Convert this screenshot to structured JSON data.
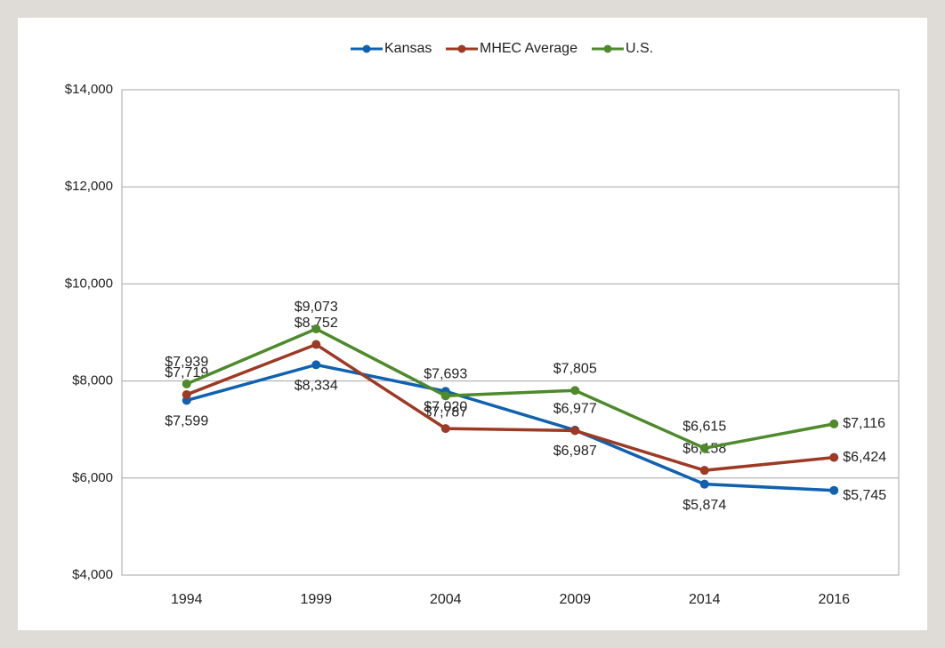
{
  "chart_data": {
    "type": "line",
    "categories": [
      "1994",
      "1999",
      "2004",
      "2009",
      "2014",
      "2016"
    ],
    "series": [
      {
        "name": "Kansas",
        "color": "#1061b0",
        "values": [
          7599,
          8334,
          7787,
          6987,
          5874,
          5745
        ],
        "value_labels": [
          "$7,599",
          "$8,334",
          "$7,787",
          "$6,987",
          "$5,874",
          "$5,745"
        ]
      },
      {
        "name": "MHEC Average",
        "color": "#9c3a24",
        "values": [
          7719,
          8752,
          7020,
          6977,
          6158,
          6424
        ],
        "value_labels": [
          "$7,719",
          "$8,752",
          "$7,020",
          "$6,977",
          "$6,158",
          "$6,424"
        ]
      },
      {
        "name": "U.S.",
        "color": "#4e8a2c",
        "values": [
          7939,
          9073,
          7693,
          7805,
          6615,
          7116
        ],
        "value_labels": [
          "$7,939",
          "$9,073",
          "$7,693",
          "$7,805",
          "$6,615",
          "$7,116"
        ]
      }
    ],
    "ylim": [
      4000,
      14000
    ],
    "yticks": [
      {
        "value": 4000,
        "label": "$4,000"
      },
      {
        "value": 6000,
        "label": "$6,000"
      },
      {
        "value": 8000,
        "label": "$8,000"
      },
      {
        "value": 10000,
        "label": "$10,000"
      },
      {
        "value": 12000,
        "label": "$12,000"
      },
      {
        "value": 14000,
        "label": "$14,000"
      }
    ],
    "grid": true,
    "legend": "top"
  }
}
